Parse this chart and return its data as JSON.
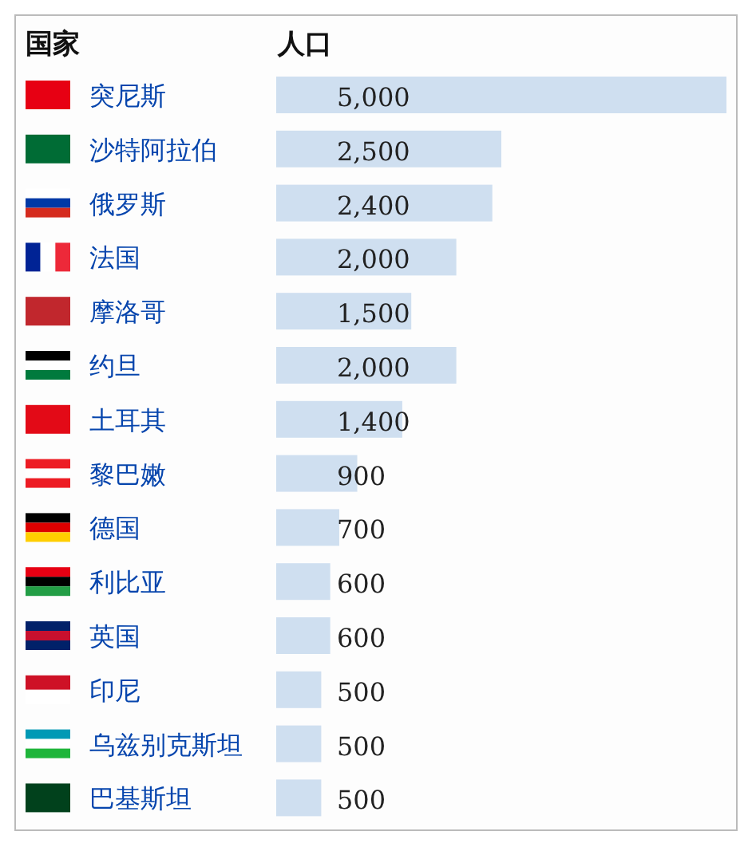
{
  "chart_data": {
    "type": "bar",
    "orientation": "horizontal",
    "ylabel": "国家",
    "xlabel": "人口",
    "color": "#cfdff0",
    "categories": [
      "突尼斯",
      "沙特阿拉伯",
      "俄罗斯",
      "法国",
      "摩洛哥",
      "约旦",
      "土耳其",
      "黎巴嫩",
      "德国",
      "利比亚",
      "英国",
      "印尼",
      "乌兹别克斯坦",
      "巴基斯坦"
    ],
    "values": [
      5000,
      2500,
      2400,
      2000,
      1500,
      2000,
      1400,
      900,
      700,
      600,
      600,
      500,
      500,
      500
    ],
    "value_labels": [
      "5,000",
      "2,500",
      "2,400",
      "2,000",
      "1,500",
      "2,000",
      "1,400",
      "900",
      "700",
      "600",
      "600",
      "500",
      "500",
      "500"
    ]
  }
}
